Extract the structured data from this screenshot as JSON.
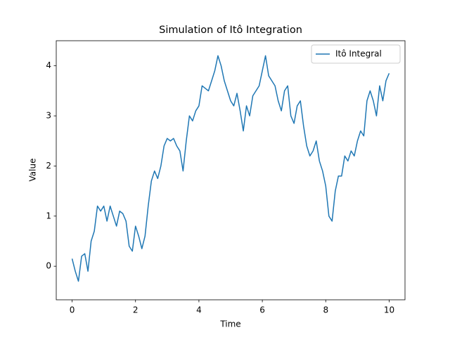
{
  "chart_data": {
    "type": "line",
    "title": "Simulation of Itô Integration",
    "x_label": "Time",
    "y_label": "Value",
    "x": [
      0,
      0.1,
      0.2,
      0.3,
      0.4,
      0.5,
      0.6,
      0.7,
      0.8,
      0.9,
      1.0,
      1.1,
      1.2,
      1.3,
      1.4,
      1.5,
      1.6,
      1.7,
      1.8,
      1.9,
      2.0,
      2.1,
      2.2,
      2.3,
      2.4,
      2.5,
      2.6,
      2.7,
      2.8,
      2.9,
      3.0,
      3.1,
      3.2,
      3.3,
      3.4,
      3.5,
      3.6,
      3.7,
      3.8,
      3.9,
      4.0,
      4.1,
      4.2,
      4.3,
      4.4,
      4.5,
      4.6,
      4.7,
      4.8,
      4.9,
      5.0,
      5.1,
      5.2,
      5.3,
      5.4,
      5.5,
      5.6,
      5.7,
      5.8,
      5.9,
      6.0,
      6.1,
      6.2,
      6.3,
      6.4,
      6.5,
      6.6,
      6.7,
      6.8,
      6.9,
      7.0,
      7.1,
      7.2,
      7.3,
      7.4,
      7.5,
      7.6,
      7.7,
      7.8,
      7.9,
      8.0,
      8.1,
      8.2,
      8.3,
      8.4,
      8.5,
      8.6,
      8.7,
      8.8,
      8.9,
      9.0,
      9.1,
      9.2,
      9.3,
      9.4,
      9.5,
      9.6,
      9.7,
      9.8,
      9.9,
      10.0
    ],
    "series": [
      {
        "name": "Itô Integral",
        "color": "#1f77b4",
        "values": [
          0.15,
          -0.1,
          -0.3,
          0.2,
          0.25,
          -0.1,
          0.5,
          0.7,
          1.2,
          1.1,
          1.2,
          0.9,
          1.2,
          1.0,
          0.8,
          1.1,
          1.05,
          0.9,
          0.4,
          0.3,
          0.8,
          0.6,
          0.35,
          0.6,
          1.2,
          1.7,
          1.9,
          1.75,
          2.0,
          2.4,
          2.55,
          2.5,
          2.55,
          2.4,
          2.3,
          1.9,
          2.5,
          3.0,
          2.9,
          3.1,
          3.2,
          3.6,
          3.55,
          3.5,
          3.7,
          3.9,
          4.2,
          4.0,
          3.7,
          3.5,
          3.3,
          3.2,
          3.45,
          3.1,
          2.7,
          3.2,
          3.0,
          3.4,
          3.5,
          3.6,
          3.9,
          4.2,
          3.8,
          3.7,
          3.6,
          3.3,
          3.1,
          3.5,
          3.6,
          3.0,
          2.85,
          3.2,
          3.3,
          2.8,
          2.4,
          2.2,
          2.3,
          2.5,
          2.1,
          1.9,
          1.6,
          1.0,
          0.9,
          1.5,
          1.8,
          1.8,
          2.2,
          2.1,
          2.3,
          2.2,
          2.5,
          2.7,
          2.6,
          3.3,
          3.5,
          3.3,
          3.0,
          3.6,
          3.3,
          3.7,
          3.85
        ]
      }
    ],
    "xlim": [
      -0.5,
      10.5
    ],
    "ylim": [
      -0.67,
      4.5
    ],
    "xticks": [
      0,
      2,
      4,
      6,
      8,
      10
    ],
    "yticks": [
      0,
      1,
      2,
      3,
      4
    ],
    "legend": "upper right"
  }
}
